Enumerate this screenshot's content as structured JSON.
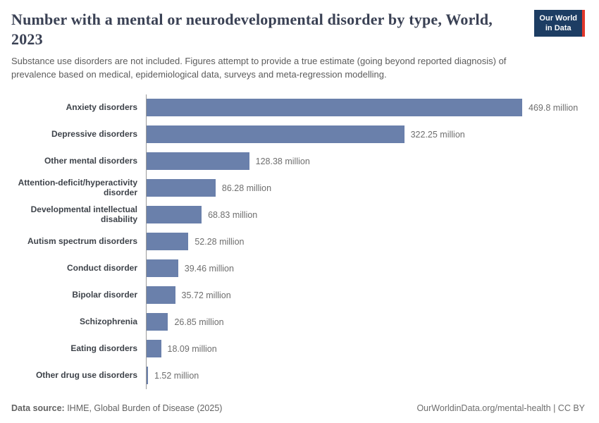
{
  "header": {
    "title": "Number with a mental or neurodevelopmental disorder by type, World, 2023",
    "subtitle": "Substance use disorders are not included. Figures attempt to provide a true estimate (going beyond reported diagnosis) of prevalence based on medical, epidemiological data, surveys and meta-regression modelling.",
    "logo": {
      "line1": "Our World",
      "line2": "in Data"
    }
  },
  "colors": {
    "bar": "#6a80ab",
    "logo_bg": "#1d3d63",
    "logo_accent": "#e2372b",
    "title_text": "#3a4154"
  },
  "chart_data": {
    "type": "bar",
    "orientation": "horizontal",
    "title": "Number with a mental or neurodevelopmental disorder by type, World, 2023",
    "categories": [
      "Anxiety disorders",
      "Depressive disorders",
      "Other mental disorders",
      "Attention-deficit/hyperactivity disorder",
      "Developmental intellectual disability",
      "Autism spectrum disorders",
      "Conduct disorder",
      "Bipolar disorder",
      "Schizophrenia",
      "Eating disorders",
      "Other drug use disorders"
    ],
    "values": [
      469.8,
      322.25,
      128.38,
      86.28,
      68.83,
      52.28,
      39.46,
      35.72,
      26.85,
      18.09,
      1.52
    ],
    "value_labels": [
      "469.8 million",
      "322.25 million",
      "128.38 million",
      "86.28 million",
      "68.83 million",
      "52.28 million",
      "39.46 million",
      "35.72 million",
      "26.85 million",
      "18.09 million",
      "1.52 million"
    ],
    "unit": "million",
    "xlim": [
      0,
      469.8
    ],
    "grid": false,
    "legend": false
  },
  "footer": {
    "datasource_label": "Data source:",
    "datasource": " IHME, Global Burden of Disease (2025)",
    "link": "OurWorldinData.org/mental-health",
    "license": " | CC BY"
  }
}
